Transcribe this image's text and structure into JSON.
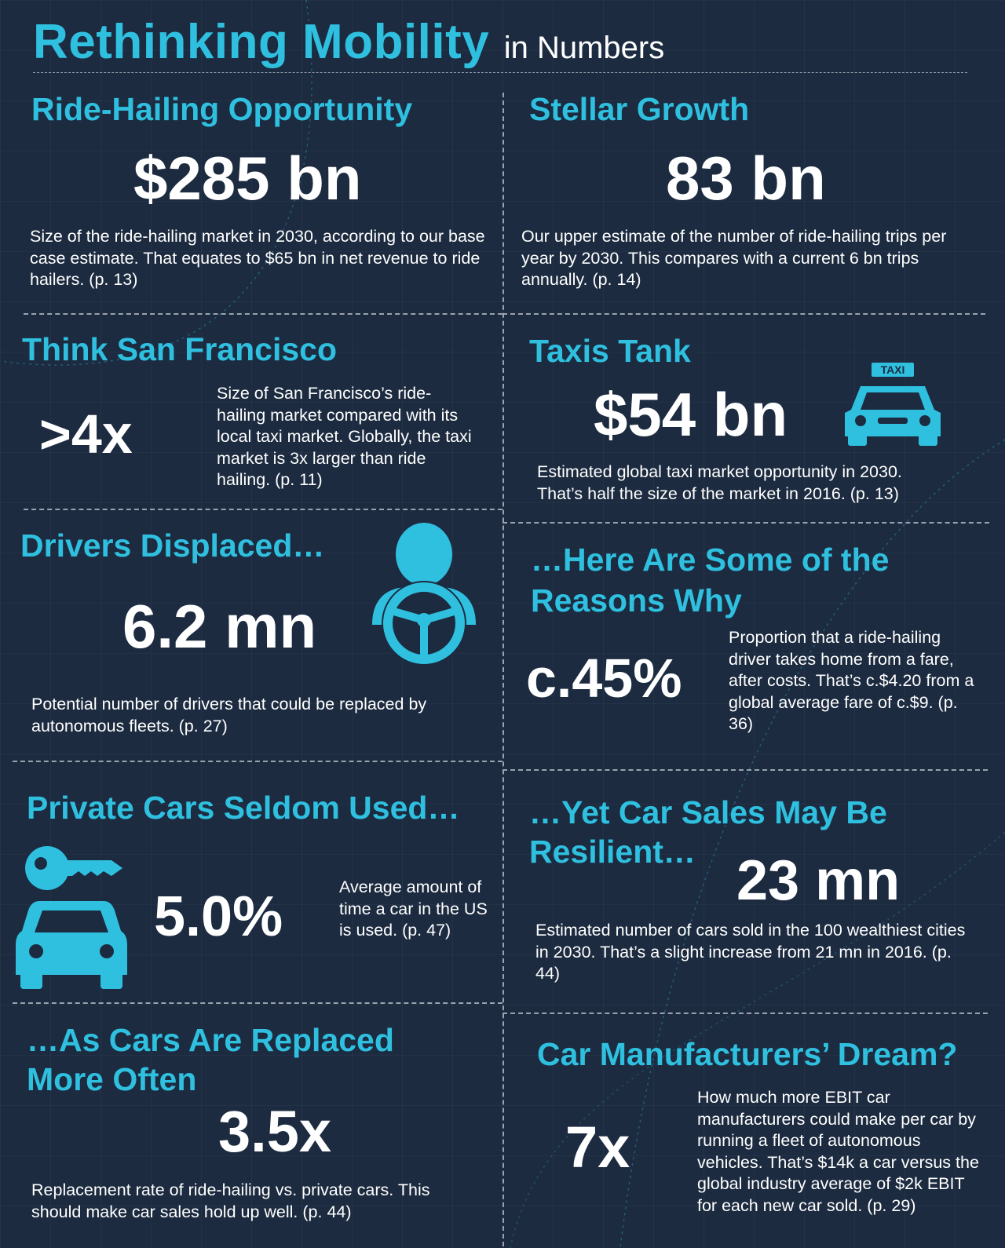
{
  "header": {
    "title": "Rethinking Mobility",
    "subtitle": "in Numbers"
  },
  "sections": {
    "ride_hailing": {
      "heading": "Ride-Hailing Opportunity",
      "figure": "$285 bn",
      "text": "Size of the ride-hailing market in 2030, according to our base case estimate. That equates to $65 bn in net revenue to ride hailers. (p. 13)"
    },
    "stellar_growth": {
      "heading": "Stellar Growth",
      "figure": "83 bn",
      "text": "Our upper estimate of the number of ride-hailing trips per year by 2030. This compares with a current 6 bn trips annually. (p. 14)"
    },
    "san_francisco": {
      "heading": "Think San Francisco",
      "figure": ">4x",
      "text": "Size of San Francisco’s ride-hailing market compared with its local taxi market. Globally, the taxi market is 3x larger than ride hailing. (p. 11)"
    },
    "taxis_tank": {
      "heading": "Taxis Tank",
      "figure": "$54 bn",
      "taxi_sign": "TAXI",
      "text": "Estimated global taxi market opportunity in 2030. That’s half the size of the market in 2016. (p. 13)"
    },
    "drivers_displaced": {
      "heading": "Drivers Displaced…",
      "figure": "6.2 mn",
      "text": "Potential number of drivers that could be replaced by autonomous fleets. (p. 27)"
    },
    "reasons_why": {
      "heading_line1": "…Here Are Some of the",
      "heading_line2": "Reasons Why",
      "figure": "c.45%",
      "text": "Proportion that a ride-hailing driver takes home from a fare, after costs. That’s c.$4.20 from a global average fare of c.$9. (p. 36)"
    },
    "private_cars": {
      "heading": "Private Cars Seldom Used…",
      "figure": "5.0%",
      "text": "Average amount of time a car in the US is used. (p. 47)"
    },
    "car_sales": {
      "heading_line1": "…Yet Car Sales May Be",
      "heading_line2": "Resilient…",
      "figure": "23 mn",
      "text": "Estimated number of cars sold in the 100 wealthiest cities in 2030. That’s a slight increase from 21 mn in 2016. (p. 44)"
    },
    "replaced_often": {
      "heading_line1": "…As Cars Are Replaced",
      "heading_line2": "More Often",
      "figure": "3.5x",
      "text": "Replacement rate of ride-hailing vs. private cars. This should make car sales hold up well. (p. 44)"
    },
    "manufacturers_dream": {
      "heading": "Car Manufacturers’ Dream?",
      "figure": "7x",
      "text": "How much more EBIT car manufacturers could make per car by running a fleet of autonomous vehicles. That’s $14k a car versus the global industry average of $2k EBIT for each new car sold. (p. 29)"
    }
  },
  "icons": [
    "taxi-icon",
    "driver-icon",
    "key-icon",
    "car-icon"
  ],
  "colors": {
    "background": "#1c2b40",
    "accent": "#2fc0e0",
    "text": "#ffffff",
    "divider": "#9aa3ae"
  }
}
